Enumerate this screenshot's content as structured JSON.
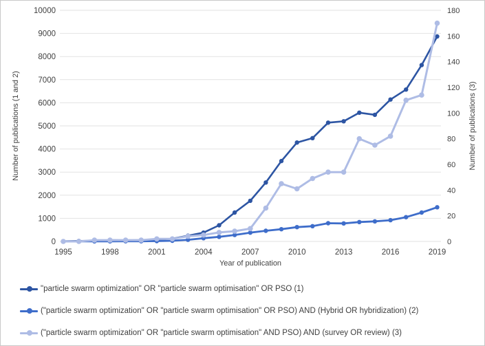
{
  "chart_data": {
    "type": "line",
    "title": "",
    "xlabel": "Year of publication",
    "x": [
      1995,
      1996,
      1997,
      1998,
      1999,
      2000,
      2001,
      2002,
      2003,
      2004,
      2005,
      2006,
      2007,
      2008,
      2009,
      2010,
      2011,
      2012,
      2013,
      2014,
      2015,
      2016,
      2017,
      2018,
      2019
    ],
    "x_tick_labels": [
      "1995",
      "1998",
      "2001",
      "2004",
      "2007",
      "2010",
      "2013",
      "2016",
      "2019"
    ],
    "grid": true,
    "legend_position": "bottom",
    "left_axis": {
      "label": "Number of publications (1 and 2)",
      "min": 0,
      "max": 10000,
      "step": 1000,
      "tick_labels": [
        "0",
        "1000",
        "2000",
        "3000",
        "4000",
        "5000",
        "6000",
        "7000",
        "8000",
        "9000",
        "10000"
      ]
    },
    "right_axis": {
      "label": "Number of publications (3)",
      "min": 0,
      "max": 180,
      "step": 20,
      "tick_labels": [
        "0",
        "20",
        "40",
        "60",
        "80",
        "100",
        "120",
        "140",
        "160",
        "180"
      ]
    },
    "series": [
      {
        "name": "\"particle swarm optimization\" OR \"particle swarm optimisation\" OR PSO (1)",
        "axis": "left",
        "color": "#2d55a3",
        "line_width": 2.6,
        "dot_radius": 3.2,
        "values": [
          10,
          20,
          30,
          60,
          50,
          60,
          70,
          120,
          250,
          380,
          700,
          1250,
          1760,
          2550,
          3480,
          4280,
          4470,
          5140,
          5200,
          5570,
          5480,
          6140,
          6570,
          7630,
          8870
        ]
      },
      {
        "name": "(\"particle swarm optimization\" OR \"particle swarm optimisation\" OR PSO) AND (Hybrid OR hybridization) (2)",
        "axis": "left",
        "color": "#3e6dca",
        "line_width": 2.8,
        "dot_radius": 3.2,
        "values": [
          0,
          2,
          3,
          5,
          8,
          10,
          15,
          30,
          70,
          140,
          200,
          280,
          380,
          460,
          530,
          620,
          660,
          790,
          780,
          840,
          870,
          920,
          1050,
          1250,
          1480
        ]
      },
      {
        "name": "(\"particle swarm optimization\" OR \"particle swarm optimisation\" AND PSO) AND (survey OR review) (3)",
        "axis": "right",
        "color": "#aebce5",
        "line_width": 3,
        "dot_radius": 3.8,
        "values": [
          0,
          0,
          1,
          1,
          1,
          1,
          2,
          2,
          4,
          5,
          7,
          8,
          10,
          26,
          45,
          41,
          49,
          54,
          54,
          80,
          75,
          82,
          110,
          114,
          170
        ]
      }
    ],
    "style": {
      "gridline_color": "#e2e2e2",
      "tick_text_color": "#404040",
      "axis_title_color": "#404040"
    }
  }
}
